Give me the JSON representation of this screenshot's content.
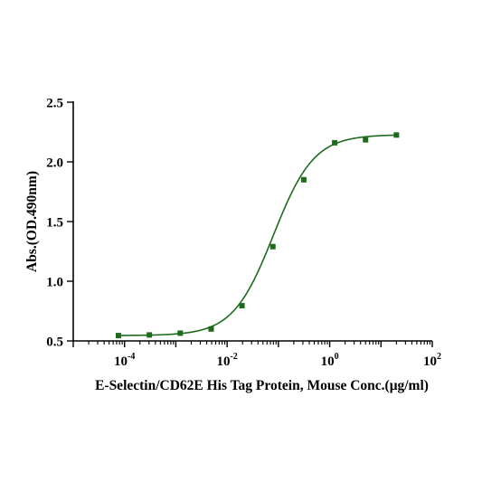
{
  "chart_data": {
    "type": "scatter",
    "title": "",
    "xlabel": "E-Selectin/CD62E His Tag Protein, Mouse Conc.(μg/ml)",
    "ylabel": "Abs.(OD.490nm)",
    "x_scale": "log",
    "xlim": [
      1e-05,
      100
    ],
    "ylim": [
      0.5,
      2.5
    ],
    "y_ticks": [
      {
        "value": 0.5,
        "label": "0.5"
      },
      {
        "value": 1.0,
        "label": "1.0"
      },
      {
        "value": 1.5,
        "label": "1.5"
      },
      {
        "value": 2.0,
        "label": "2.0"
      },
      {
        "value": 2.5,
        "label": "2.5"
      }
    ],
    "x_ticks": [
      {
        "value": 0.0001,
        "base": "10",
        "exp": "-4"
      },
      {
        "value": 0.01,
        "base": "10",
        "exp": "-2"
      },
      {
        "value": 1,
        "base": "10",
        "exp": "0"
      },
      {
        "value": 100,
        "base": "10",
        "exp": "2"
      }
    ],
    "grid": false,
    "color": "#1e6b1e",
    "series": [
      {
        "x": [
          7.6e-05,
          0.000305,
          0.00122,
          0.00488,
          0.0195,
          0.078,
          0.3125,
          1.25,
          5,
          20
        ],
        "y": [
          0.545,
          0.55,
          0.565,
          0.6,
          0.795,
          1.29,
          1.85,
          2.16,
          2.185,
          2.225
        ]
      }
    ],
    "fit": {
      "model": "4PL",
      "bottom": 0.545,
      "top": 2.228,
      "ec50": 0.08,
      "hill": 1.1
    }
  }
}
